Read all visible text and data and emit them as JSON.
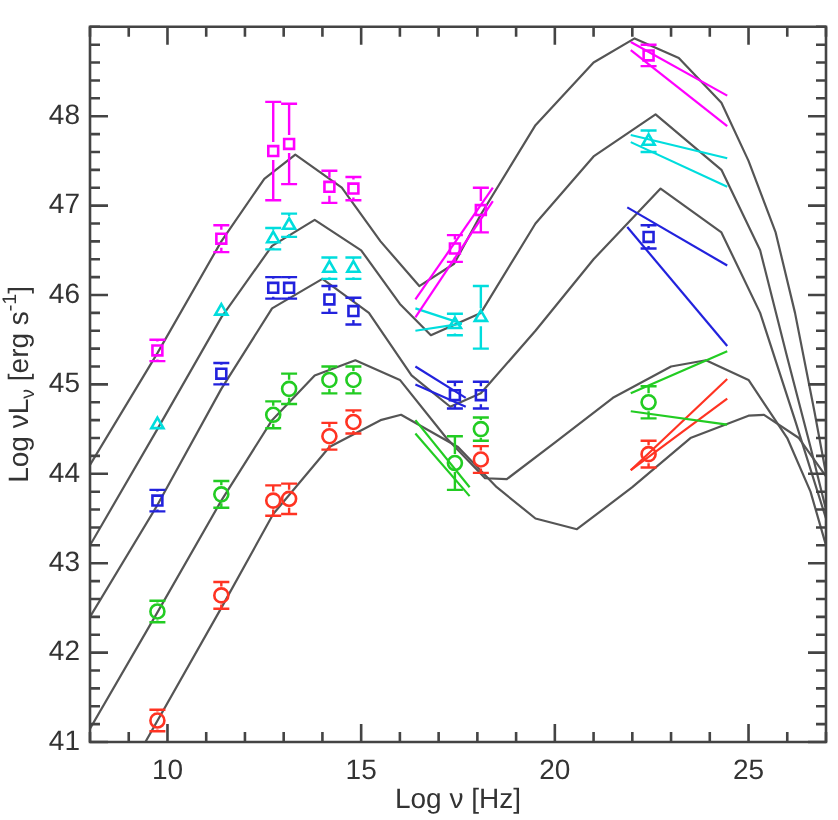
{
  "chart_data": {
    "type": "scatter",
    "xlabel": "Log ν [Hz]",
    "ylabel": "Log νL$_{ν}$ [erg s$^{-1}$]",
    "xlim": [
      8,
      27
    ],
    "ylim": [
      41,
      49
    ],
    "xticks": [
      {
        "value": 8,
        "label": null
      },
      {
        "value": 9,
        "label": null
      },
      10,
      {
        "value": 11,
        "label": null
      },
      {
        "value": 12,
        "label": null
      },
      {
        "value": 13,
        "label": null
      },
      {
        "value": 14,
        "label": null
      },
      15,
      {
        "value": 16,
        "label": null
      },
      {
        "value": 17,
        "label": null
      },
      {
        "value": 18,
        "label": null
      },
      {
        "value": 19,
        "label": null
      },
      20,
      {
        "value": 21,
        "label": null
      },
      {
        "value": 22,
        "label": null
      },
      {
        "value": 23,
        "label": null
      },
      {
        "value": 24,
        "label": null
      },
      25,
      {
        "value": 26,
        "label": null
      },
      {
        "value": 27,
        "label": null
      }
    ],
    "yticks": [
      41,
      {
        "value": 41.2,
        "label": null
      },
      {
        "value": 41.4,
        "label": null
      },
      {
        "value": 41.6,
        "label": null
      },
      {
        "value": 41.8,
        "label": null
      },
      42,
      {
        "value": 42.2,
        "label": null
      },
      {
        "value": 42.4,
        "label": null
      },
      {
        "value": 42.6,
        "label": null
      },
      {
        "value": 42.8,
        "label": null
      },
      43,
      {
        "value": 43.2,
        "label": null
      },
      {
        "value": 43.4,
        "label": null
      },
      {
        "value": 43.6,
        "label": null
      },
      {
        "value": 43.8,
        "label": null
      },
      44,
      {
        "value": 44.2,
        "label": null
      },
      {
        "value": 44.4,
        "label": null
      },
      {
        "value": 44.6,
        "label": null
      },
      {
        "value": 44.8,
        "label": null
      },
      45,
      {
        "value": 45.2,
        "label": null
      },
      {
        "value": 45.4,
        "label": null
      },
      {
        "value": 45.6,
        "label": null
      },
      {
        "value": 45.8,
        "label": null
      },
      46,
      {
        "value": 46.2,
        "label": null
      },
      {
        "value": 46.4,
        "label": null
      },
      {
        "value": 46.6,
        "label": null
      },
      {
        "value": 46.8,
        "label": null
      },
      47,
      {
        "value": 47.2,
        "label": null
      },
      {
        "value": 47.4,
        "label": null
      },
      {
        "value": 47.6,
        "label": null
      },
      {
        "value": 47.8,
        "label": null
      },
      48,
      {
        "value": 48.2,
        "label": null
      },
      {
        "value": 48.4,
        "label": null
      },
      {
        "value": 48.6,
        "label": null
      },
      {
        "value": 48.8,
        "label": null
      },
      {
        "value": 49,
        "label": null
      }
    ],
    "grid": false,
    "legend": false,
    "series": [
      {
        "marker": "square",
        "color": "#ff00ff",
        "x": [
          9.74,
          11.39,
          12.73,
          13.14,
          14.18,
          14.8,
          17.42,
          18.09,
          22.42
        ],
        "values": [
          45.38,
          46.63,
          47.61,
          47.69,
          47.21,
          47.19,
          46.52,
          46.95,
          48.68
        ],
        "errors": [
          0.12,
          0.15,
          0.55,
          0.45,
          0.18,
          0.13,
          0.15,
          0.25,
          0.12
        ]
      },
      {
        "marker": "triangle",
        "color": "#00dddd",
        "x": [
          9.74,
          11.39,
          12.73,
          13.14,
          14.18,
          14.8,
          17.42,
          18.09,
          22.42
        ],
        "values": [
          44.55,
          45.82,
          46.63,
          46.78,
          46.3,
          46.3,
          45.67,
          45.75,
          47.72
        ],
        "errors": [
          null,
          null,
          0.12,
          0.13,
          0.12,
          0.12,
          0.12,
          0.35,
          0.12
        ]
      },
      {
        "marker": "square",
        "color": "#2222dd",
        "x": [
          9.74,
          11.39,
          12.73,
          13.14,
          14.18,
          14.8,
          17.42,
          18.09,
          22.42
        ],
        "values": [
          43.7,
          45.12,
          46.08,
          46.08,
          45.95,
          45.82,
          44.88,
          44.88,
          46.65
        ],
        "errors": [
          0.12,
          0.12,
          0.12,
          0.12,
          0.15,
          0.15,
          0.15,
          0.15,
          0.13
        ]
      },
      {
        "color": "#22cc22",
        "x": [
          9.74,
          11.39,
          12.73,
          13.14,
          14.18,
          14.8,
          17.42,
          18.09,
          22.42
        ],
        "values": [
          42.46,
          43.77,
          44.66,
          44.95,
          45.05,
          45.05,
          44.12,
          44.5,
          44.8
        ],
        "errors": [
          0.12,
          0.15,
          0.15,
          0.17,
          0.15,
          0.15,
          0.3,
          0.13,
          0.18
        ]
      },
      {
        "color": "#ff3322",
        "x": [
          9.74,
          11.39,
          12.73,
          13.14,
          14.18,
          14.8,
          18.09,
          22.42
        ],
        "values": [
          41.24,
          42.64,
          43.7,
          43.72,
          44.42,
          44.58,
          44.16,
          44.22
        ],
        "errors": [
          0.12,
          0.15,
          0.17,
          0.17,
          0.15,
          0.13,
          0.15,
          0.15
        ]
      },
      {
        "type": "line",
        "marker": "none",
        "color": "#ff00ff",
        "x": [
          21.96,
          24.45
        ],
        "values": [
          48.83,
          48.23
        ]
      },
      {
        "type": "line",
        "marker": "none",
        "color": "#ff00ff",
        "x": [
          21.96,
          24.45
        ],
        "values": [
          48.74,
          47.89
        ]
      },
      {
        "type": "line",
        "marker": "none",
        "color": "#00dddd",
        "x": [
          21.96,
          24.45
        ],
        "values": [
          47.79,
          47.53
        ]
      },
      {
        "type": "line",
        "marker": "none",
        "color": "#00dddd",
        "x": [
          21.96,
          24.45
        ],
        "values": [
          47.71,
          47.21
        ]
      },
      {
        "type": "line",
        "marker": "none",
        "color": "#2222dd",
        "x": [
          21.87,
          24.45
        ],
        "values": [
          46.98,
          46.33
        ]
      },
      {
        "type": "line",
        "marker": "none",
        "color": "#2222dd",
        "x": [
          21.87,
          24.45
        ],
        "values": [
          46.76,
          45.43
        ]
      },
      {
        "type": "line",
        "marker": "none",
        "color": "#22cc22",
        "x": [
          21.96,
          24.45
        ],
        "values": [
          44.9,
          45.37
        ]
      },
      {
        "type": "line",
        "marker": "none",
        "color": "#22cc22",
        "x": [
          21.96,
          24.45
        ],
        "values": [
          44.7,
          44.55
        ]
      },
      {
        "type": "line",
        "marker": "none",
        "color": "#ff3322",
        "x": [
          21.96,
          24.45
        ],
        "values": [
          44.04,
          45.06
        ]
      },
      {
        "type": "line",
        "marker": "none",
        "color": "#ff3322",
        "x": [
          21.96,
          24.45
        ],
        "values": [
          44.04,
          44.84
        ]
      },
      {
        "type": "line",
        "marker": "none",
        "color": "#ff00ff",
        "x": [
          16.4,
          18.4
        ],
        "values": [
          45.95,
          47.2
        ]
      },
      {
        "type": "line",
        "marker": "none",
        "color": "#ff00ff",
        "x": [
          16.4,
          18.4
        ],
        "values": [
          45.75,
          47.05
        ]
      },
      {
        "type": "line",
        "marker": "none",
        "color": "#00dddd",
        "x": [
          16.4,
          17.6
        ],
        "values": [
          45.85,
          45.68
        ]
      },
      {
        "type": "line",
        "marker": "none",
        "color": "#00dddd",
        "x": [
          16.4,
          17.6
        ],
        "values": [
          45.6,
          45.68
        ]
      },
      {
        "type": "line",
        "marker": "none",
        "color": "#2222dd",
        "x": [
          16.4,
          17.7
        ],
        "values": [
          45.2,
          44.85
        ]
      },
      {
        "type": "line",
        "marker": "none",
        "color": "#2222dd",
        "x": [
          16.4,
          17.7
        ],
        "values": [
          45.0,
          44.75
        ]
      },
      {
        "type": "line",
        "marker": "none",
        "color": "#22cc22",
        "x": [
          16.4,
          17.8
        ],
        "values": [
          44.6,
          43.85
        ]
      },
      {
        "type": "line",
        "marker": "none",
        "color": "#22cc22",
        "x": [
          16.4,
          17.8
        ],
        "values": [
          44.45,
          43.75
        ]
      },
      {
        "type": "line",
        "marker": "none",
        "color": "#555555",
        "x": [
          8,
          9.74,
          11.39,
          12.5,
          13.3,
          14.5,
          15.5,
          16.5,
          17.4,
          18.09,
          19.5,
          21,
          22.06,
          23.2,
          24.3,
          25,
          25.7,
          26.2,
          26.7,
          27
        ],
        "values": [
          44.1,
          45.35,
          46.6,
          47.3,
          47.57,
          47.2,
          46.6,
          46.1,
          46.35,
          46.9,
          47.9,
          48.6,
          48.87,
          48.65,
          48.15,
          47.5,
          46.7,
          45.8,
          44.7,
          44.0
        ]
      },
      {
        "type": "line",
        "marker": "none",
        "color": "#555555",
        "x": [
          8,
          9.74,
          11.39,
          12.7,
          13.8,
          15,
          16,
          16.8,
          18.09,
          19.5,
          21,
          22.6,
          24.3,
          25.3,
          26,
          26.6,
          27
        ],
        "values": [
          43.2,
          44.5,
          45.75,
          46.55,
          46.84,
          46.5,
          45.9,
          45.55,
          45.8,
          46.8,
          47.55,
          48.02,
          47.4,
          46.5,
          45.3,
          44.3,
          43.6
        ]
      },
      {
        "type": "line",
        "marker": "none",
        "color": "#555555",
        "x": [
          8,
          9.74,
          11.39,
          12.7,
          14,
          15.2,
          16.3,
          17.3,
          18.09,
          19.5,
          21,
          22.73,
          24.3,
          25.3,
          26.2,
          27
        ],
        "values": [
          42.4,
          43.65,
          44.95,
          45.85,
          46.18,
          45.8,
          45.1,
          44.75,
          44.9,
          45.6,
          46.4,
          47.19,
          46.7,
          45.8,
          44.6,
          43.5
        ]
      },
      {
        "type": "line",
        "marker": "none",
        "color": "#555555",
        "x": [
          8,
          9.74,
          11.39,
          12.7,
          13.8,
          14.85,
          16,
          17.2,
          18.2,
          18.76,
          20,
          21.5,
          23,
          23.9,
          25,
          26,
          26.6,
          27
        ],
        "values": [
          41.15,
          42.45,
          43.7,
          44.6,
          45.1,
          45.27,
          45.05,
          44.4,
          43.95,
          43.94,
          44.35,
          44.85,
          45.2,
          45.27,
          45.05,
          44.4,
          43.8,
          43.2
        ]
      },
      {
        "type": "line",
        "marker": "none",
        "color": "#555555",
        "x": [
          9.43,
          11.39,
          12.73,
          14.18,
          15.5,
          16.03,
          17.5,
          18.5,
          19.5,
          20.57,
          22,
          23.5,
          25,
          25.4,
          26.3,
          27
        ],
        "values": [
          41,
          42.5,
          43.55,
          44.3,
          44.6,
          44.66,
          44.3,
          43.85,
          43.5,
          43.38,
          43.85,
          44.4,
          44.65,
          44.66,
          44.4,
          43.97
        ]
      }
    ]
  }
}
